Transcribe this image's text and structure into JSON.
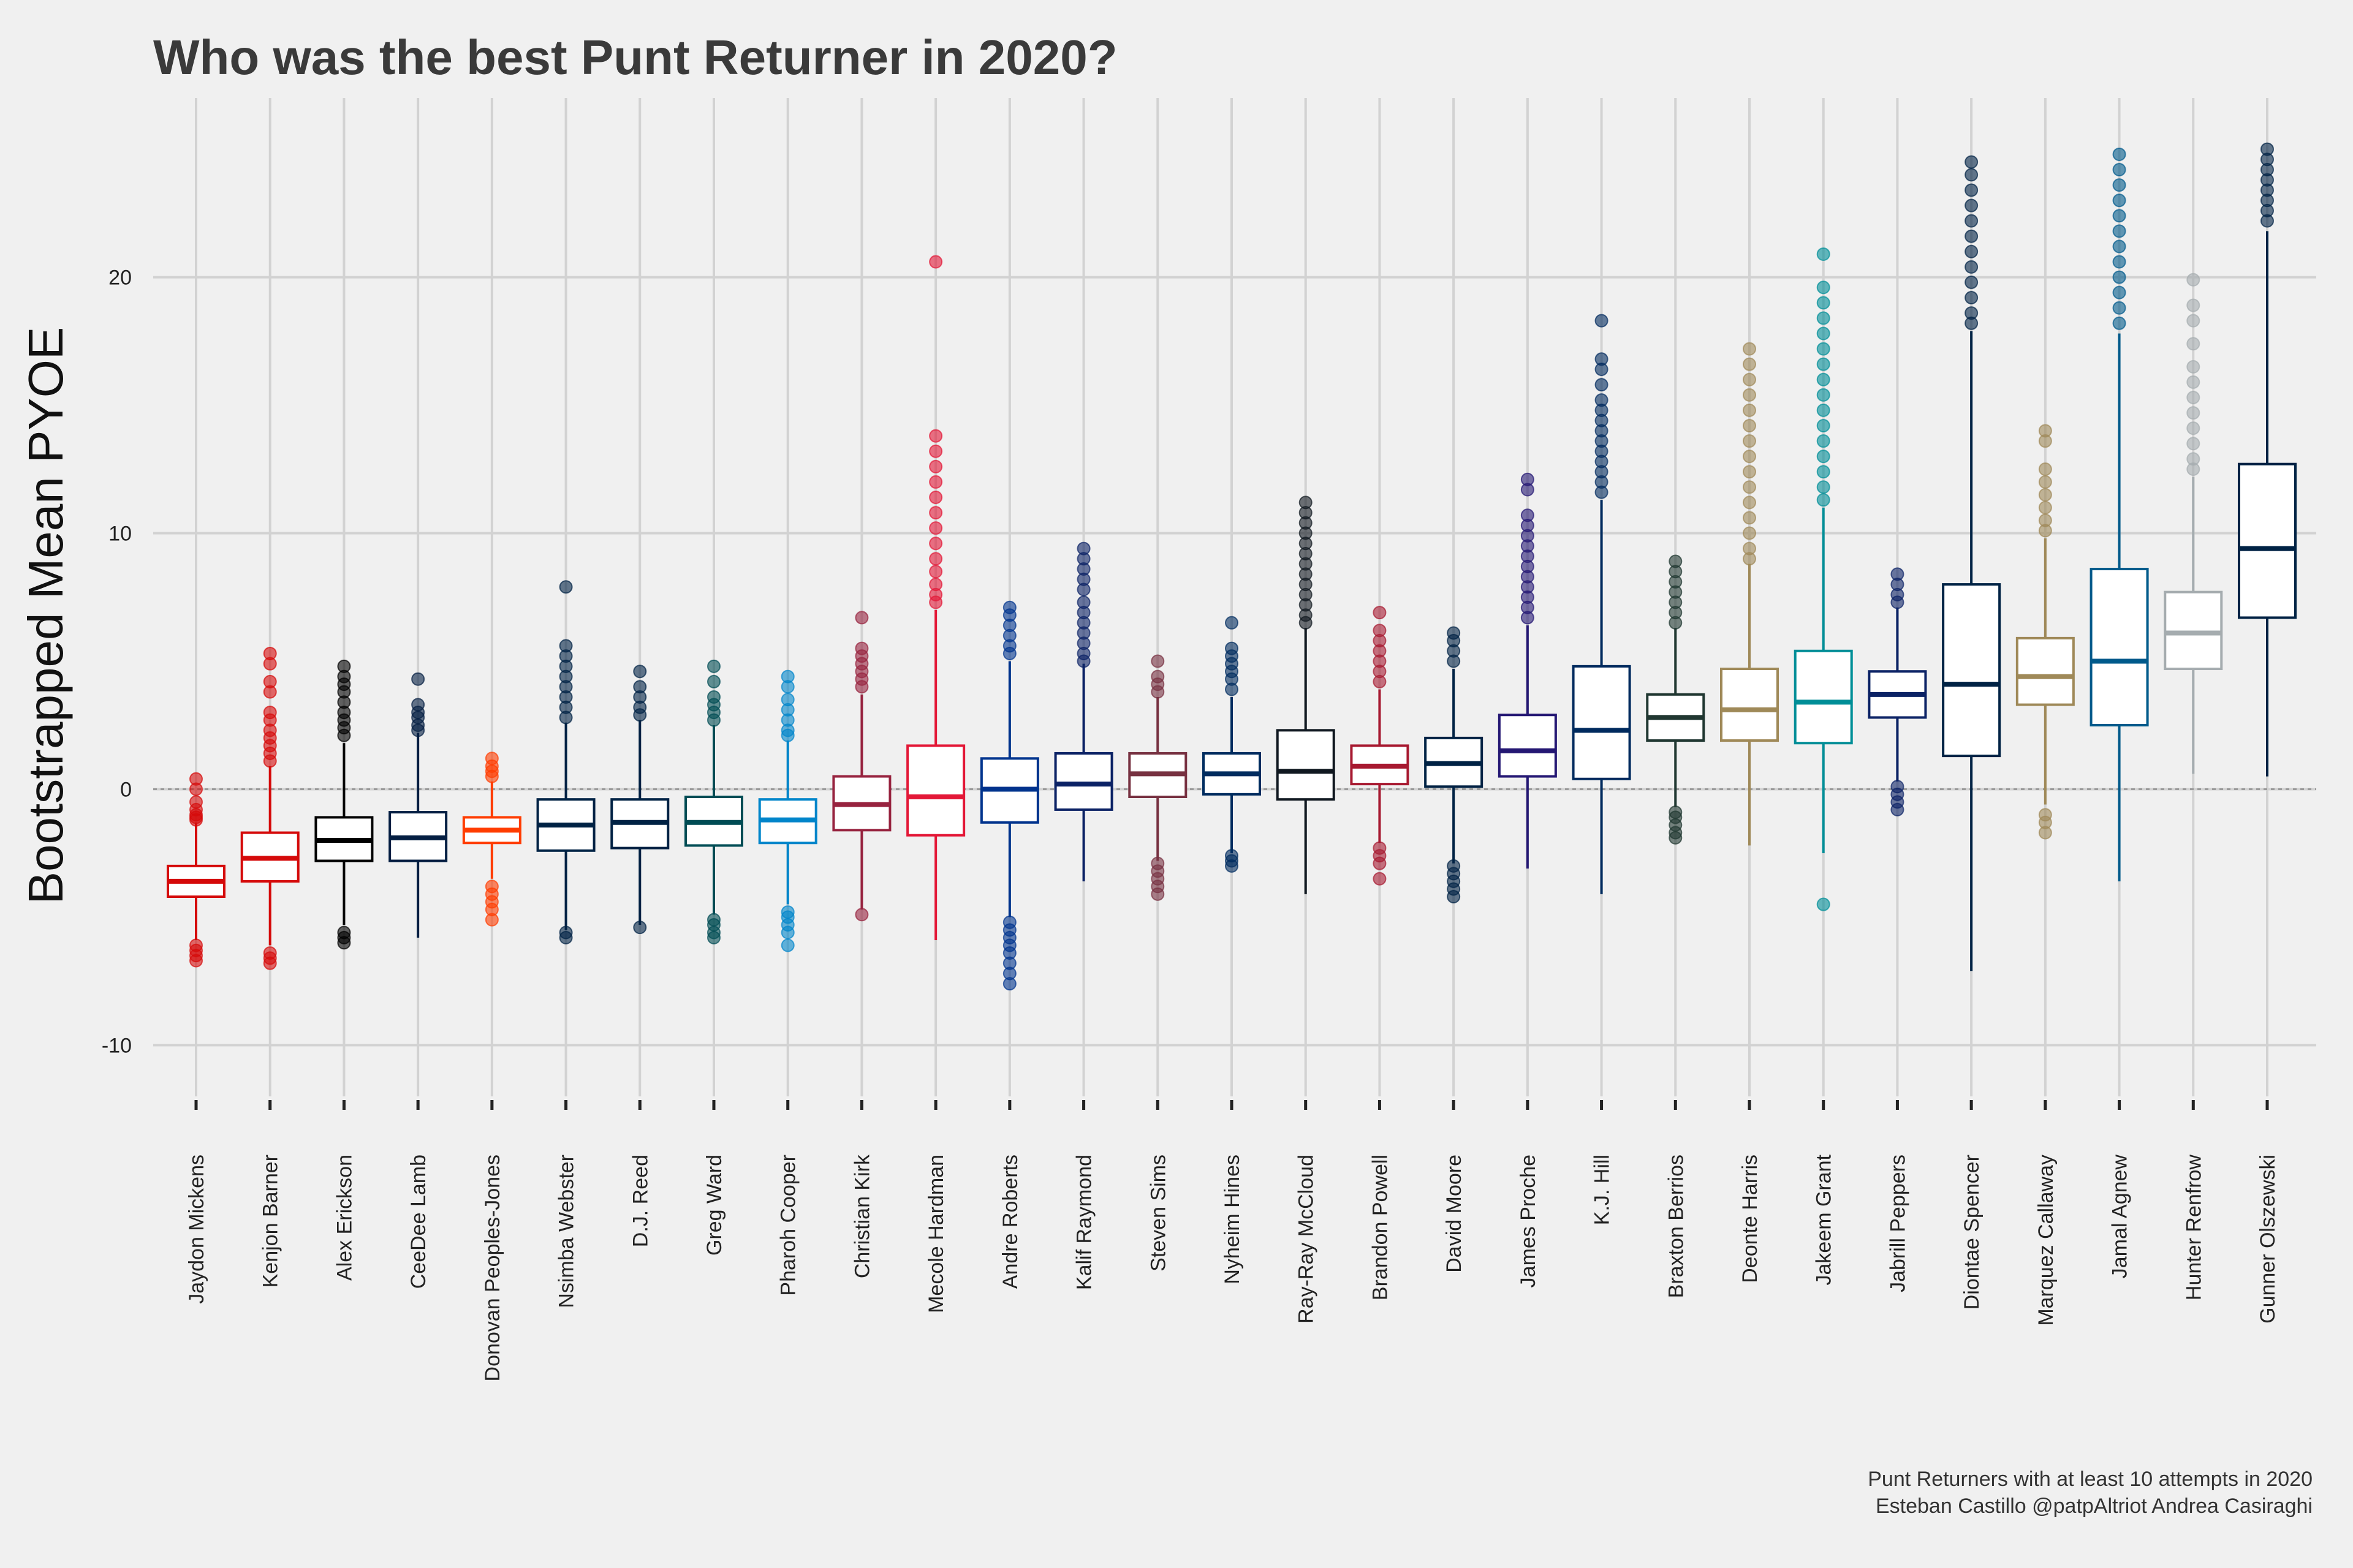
{
  "chart_data": {
    "type": "boxplot",
    "title": "Who was the best Punt Returner in 2020?",
    "xlabel": "",
    "ylabel": "Bootstrapped Mean PYOE",
    "ylim": [
      -12,
      27
    ],
    "yticks": [
      -10,
      0,
      10,
      20
    ],
    "ytick_labels": [
      "-10",
      "0",
      "10",
      "20"
    ],
    "reference_line": 0,
    "grid": true,
    "caption": [
      "Punt Returners with at least 10 attempts in 2020",
      "Esteban Castillo @patpAltriot Andrea Casiraghi"
    ],
    "players": [
      {
        "name": "Jaydon Mickens",
        "color": "#d50a0a",
        "q1": -4.2,
        "median": -3.6,
        "q3": -3.0,
        "wlow": -5.9,
        "whigh": -1.3,
        "outliers": [
          0.4,
          0.0,
          -0.5,
          -0.8,
          -1.0,
          -1.1,
          -1.2,
          -6.1,
          -6.3,
          -6.5,
          -6.7
        ]
      },
      {
        "name": "Kenjon Barner",
        "color": "#d50a0a",
        "q1": -3.6,
        "median": -2.7,
        "q3": -1.7,
        "wlow": -6.1,
        "whigh": 0.9,
        "outliers": [
          5.3,
          4.9,
          4.2,
          3.8,
          3.0,
          2.7,
          2.3,
          2.0,
          1.7,
          1.4,
          1.1,
          -6.4,
          -6.6,
          -6.8
        ]
      },
      {
        "name": "Alex Erickson",
        "color": "#000000",
        "q1": -2.8,
        "median": -2.0,
        "q3": -1.1,
        "wlow": -5.3,
        "whigh": 1.8,
        "outliers": [
          4.8,
          4.4,
          4.1,
          3.8,
          3.4,
          3.0,
          2.7,
          2.4,
          2.1,
          -5.6,
          -5.8,
          -6.0
        ]
      },
      {
        "name": "CeeDee Lamb",
        "color": "#041e42",
        "q1": -2.8,
        "median": -1.9,
        "q3": -0.9,
        "wlow": -5.8,
        "whigh": 2.2,
        "outliers": [
          4.3,
          3.3,
          3.0,
          2.8,
          2.5,
          2.3
        ]
      },
      {
        "name": "Donovan Peoples-Jones",
        "color": "#ff3c00",
        "q1": -2.1,
        "median": -1.6,
        "q3": -1.1,
        "wlow": -3.5,
        "whigh": 0.3,
        "outliers": [
          1.2,
          0.9,
          0.7,
          0.5,
          -3.8,
          -4.1,
          -4.4,
          -4.7,
          -5.1
        ]
      },
      {
        "name": "Nsimba Webster",
        "color": "#002244",
        "q1": -2.4,
        "median": -1.4,
        "q3": -0.4,
        "wlow": -5.5,
        "whigh": 2.6,
        "outliers": [
          7.9,
          5.6,
          5.2,
          4.8,
          4.4,
          4.0,
          3.6,
          3.2,
          2.8,
          -5.6,
          -5.8
        ]
      },
      {
        "name": "D.J. Reed",
        "color": "#002244",
        "q1": -2.3,
        "median": -1.3,
        "q3": -0.4,
        "wlow": -5.3,
        "whigh": 2.7,
        "outliers": [
          4.6,
          4.0,
          3.6,
          3.2,
          2.9,
          -5.4
        ]
      },
      {
        "name": "Greg Ward",
        "color": "#004c54",
        "q1": -2.2,
        "median": -1.3,
        "q3": -0.3,
        "wlow": -4.9,
        "whigh": 2.5,
        "outliers": [
          4.8,
          4.2,
          3.6,
          3.3,
          3.0,
          2.7,
          -5.1,
          -5.3,
          -5.6,
          -5.8
        ]
      },
      {
        "name": "Pharoh Cooper",
        "color": "#0085ca",
        "q1": -2.1,
        "median": -1.2,
        "q3": -0.4,
        "wlow": -4.5,
        "whigh": 1.9,
        "outliers": [
          4.4,
          4.0,
          3.5,
          3.1,
          2.7,
          2.3,
          2.1,
          -4.8,
          -5.0,
          -5.3,
          -5.6,
          -6.1
        ]
      },
      {
        "name": "Christian Kirk",
        "color": "#97233f",
        "q1": -1.6,
        "median": -0.6,
        "q3": 0.5,
        "wlow": -4.7,
        "whigh": 3.7,
        "outliers": [
          6.7,
          5.5,
          5.2,
          4.9,
          4.6,
          4.3,
          4.0,
          -4.9
        ]
      },
      {
        "name": "Mecole Hardman",
        "color": "#e31837",
        "q1": -1.8,
        "median": -0.3,
        "q3": 1.7,
        "wlow": -5.9,
        "whigh": 7.0,
        "outliers": [
          20.6,
          13.8,
          13.2,
          12.6,
          12.0,
          11.4,
          10.8,
          10.2,
          9.6,
          9.0,
          8.5,
          8.0,
          7.6,
          7.3
        ]
      },
      {
        "name": "Andre Roberts",
        "color": "#00338d",
        "q1": -1.3,
        "median": 0.0,
        "q3": 1.2,
        "wlow": -5.0,
        "whigh": 5.0,
        "outliers": [
          7.1,
          6.8,
          6.4,
          6.0,
          5.6,
          5.3,
          -5.2,
          -5.5,
          -5.8,
          -6.1,
          -6.4,
          -6.8,
          -7.2,
          -7.6
        ]
      },
      {
        "name": "Kalif Raymond",
        "color": "#0b2265",
        "q1": -0.8,
        "median": 0.2,
        "q3": 1.4,
        "wlow": -3.6,
        "whigh": 4.9,
        "outliers": [
          9.4,
          9.0,
          8.6,
          8.2,
          7.8,
          7.3,
          6.9,
          6.5,
          6.1,
          5.7,
          5.3,
          5.0
        ]
      },
      {
        "name": "Steven Sims",
        "color": "#773141",
        "q1": -0.3,
        "median": 0.6,
        "q3": 1.4,
        "wlow": -2.8,
        "whigh": 3.6,
        "outliers": [
          5.0,
          4.4,
          4.1,
          3.8,
          -2.9,
          -3.2,
          -3.5,
          -3.8,
          -4.1
        ]
      },
      {
        "name": "Nyheim Hines",
        "color": "#002c5f",
        "q1": -0.2,
        "median": 0.6,
        "q3": 1.4,
        "wlow": -2.5,
        "whigh": 3.6,
        "outliers": [
          6.5,
          5.5,
          5.2,
          4.9,
          4.6,
          4.3,
          3.9,
          -2.6,
          -2.8,
          -3.0
        ]
      },
      {
        "name": "Ray-Ray McCloud",
        "color": "#101820",
        "q1": -0.4,
        "median": 0.7,
        "q3": 2.3,
        "wlow": -4.1,
        "whigh": 6.3,
        "outliers": [
          11.2,
          10.8,
          10.4,
          10.0,
          9.6,
          9.2,
          8.8,
          8.4,
          8.0,
          7.6,
          7.2,
          6.8,
          6.5
        ]
      },
      {
        "name": "Brandon Powell",
        "color": "#a71930",
        "q1": 0.2,
        "median": 0.9,
        "q3": 1.7,
        "wlow": -2.1,
        "whigh": 3.9,
        "outliers": [
          6.9,
          6.2,
          5.8,
          5.4,
          5.0,
          4.6,
          4.2,
          -2.3,
          -2.6,
          -2.9,
          -3.5
        ]
      },
      {
        "name": "David Moore",
        "color": "#002244",
        "q1": 0.1,
        "median": 1.0,
        "q3": 2.0,
        "wlow": -2.9,
        "whigh": 4.7,
        "outliers": [
          6.1,
          5.8,
          5.4,
          5.0,
          -3.0,
          -3.3,
          -3.6,
          -3.9,
          -4.2
        ]
      },
      {
        "name": "James Proche",
        "color": "#241773",
        "q1": 0.5,
        "median": 1.5,
        "q3": 2.9,
        "wlow": -3.1,
        "whigh": 6.4,
        "outliers": [
          12.1,
          11.7,
          10.7,
          10.3,
          9.9,
          9.5,
          9.1,
          8.7,
          8.3,
          7.9,
          7.5,
          7.1,
          6.7
        ]
      },
      {
        "name": "K.J. Hill",
        "color": "#002a5e",
        "q1": 0.4,
        "median": 2.3,
        "q3": 4.8,
        "wlow": -4.1,
        "whigh": 11.3,
        "outliers": [
          18.3,
          16.8,
          16.4,
          15.8,
          15.2,
          14.8,
          14.4,
          14.0,
          13.6,
          13.2,
          12.8,
          12.4,
          12.0,
          11.6
        ]
      },
      {
        "name": "Braxton Berrios",
        "color": "#203731",
        "q1": 1.9,
        "median": 2.8,
        "q3": 3.7,
        "wlow": -0.7,
        "whigh": 6.3,
        "outliers": [
          8.9,
          8.5,
          8.1,
          7.7,
          7.3,
          6.9,
          6.5,
          -0.9,
          -1.1,
          -1.4,
          -1.7,
          -1.9
        ]
      },
      {
        "name": "Deonte Harris",
        "color": "#9f8958",
        "q1": 1.9,
        "median": 3.1,
        "q3": 4.7,
        "wlow": -2.2,
        "whigh": 8.8,
        "outliers": [
          17.2,
          16.6,
          16.0,
          15.4,
          14.8,
          14.2,
          13.6,
          13.0,
          12.4,
          11.8,
          11.2,
          10.6,
          10.0,
          9.4,
          9.0
        ]
      },
      {
        "name": "Jakeem Grant",
        "color": "#008e97",
        "q1": 1.8,
        "median": 3.4,
        "q3": 5.4,
        "wlow": -2.5,
        "whigh": 11.0,
        "outliers": [
          20.9,
          19.6,
          19.0,
          18.4,
          17.8,
          17.2,
          16.6,
          16.0,
          15.4,
          14.8,
          14.2,
          13.6,
          13.0,
          12.4,
          11.8,
          11.3,
          -4.5
        ]
      },
      {
        "name": "Jabrill Peppers",
        "color": "#0b2265",
        "q1": 2.8,
        "median": 3.7,
        "q3": 4.6,
        "wlow": 0.3,
        "whigh": 7.1,
        "outliers": [
          8.4,
          8.0,
          7.6,
          7.3,
          0.1,
          -0.2,
          -0.5,
          -0.8
        ]
      },
      {
        "name": "Diontae Spencer",
        "color": "#002244",
        "q1": 1.3,
        "median": 4.1,
        "q3": 8.0,
        "wlow": -7.1,
        "whigh": 17.9,
        "outliers": [
          24.5,
          24.0,
          23.4,
          22.8,
          22.2,
          21.6,
          21.0,
          20.4,
          19.8,
          19.2,
          18.6,
          18.2
        ]
      },
      {
        "name": "Marquez Callaway",
        "color": "#9f8958",
        "q1": 3.3,
        "median": 4.4,
        "q3": 5.9,
        "wlow": -0.6,
        "whigh": 9.8,
        "outliers": [
          14.0,
          13.6,
          12.5,
          12.0,
          11.5,
          11.0,
          10.5,
          10.1,
          -1.0,
          -1.3,
          -1.7
        ]
      },
      {
        "name": "Jamal Agnew",
        "color": "#005a8b",
        "q1": 2.5,
        "median": 5.0,
        "q3": 8.6,
        "wlow": -3.6,
        "whigh": 17.8,
        "outliers": [
          24.8,
          24.2,
          23.6,
          23.0,
          22.4,
          21.8,
          21.2,
          20.6,
          20.0,
          19.4,
          18.8,
          18.2
        ]
      },
      {
        "name": "Hunter Renfrow",
        "color": "#a5acaf",
        "q1": 4.7,
        "median": 6.1,
        "q3": 7.7,
        "wlow": 0.6,
        "whigh": 12.2,
        "outliers": [
          19.9,
          18.9,
          18.3,
          17.4,
          16.5,
          15.9,
          15.3,
          14.7,
          14.1,
          13.5,
          12.9,
          12.5
        ]
      },
      {
        "name": "Gunner Olszewski",
        "color": "#002244",
        "q1": 6.7,
        "median": 9.4,
        "q3": 12.7,
        "wlow": 0.5,
        "whigh": 21.8,
        "outliers": [
          25.0,
          24.6,
          24.2,
          23.8,
          23.4,
          23.0,
          22.6,
          22.2
        ]
      }
    ]
  }
}
